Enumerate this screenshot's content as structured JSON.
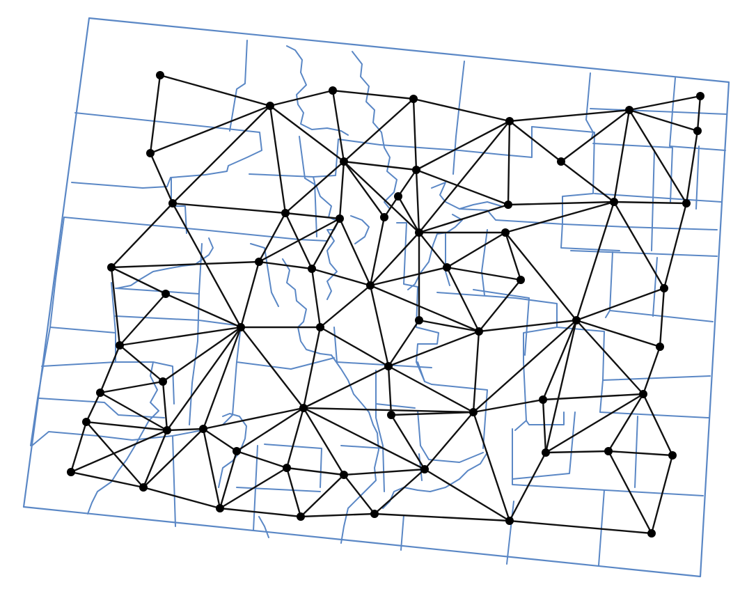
{
  "colors": {
    "background": "#ffffff",
    "county_lines": "#5a87c5",
    "network_edges": "#111111",
    "network_nodes": "#000000"
  }
}
